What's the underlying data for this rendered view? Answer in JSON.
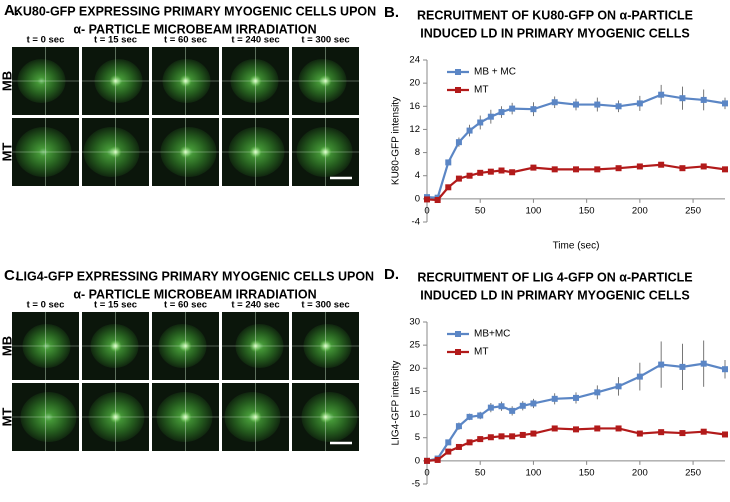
{
  "panels": [
    {
      "letter": "A.",
      "title": [
        "KU80-GFP EXPRESSING PRIMARY MYOGENIC CELLS UPON",
        "α- PARTICLE MICROBEAM IRRADIATION"
      ],
      "times": [
        "t = 0 sec",
        "t = 15 sec",
        "t = 60 sec",
        "t = 240 sec",
        "t = 300 sec"
      ],
      "rows": [
        "MB",
        "MT"
      ]
    },
    {
      "letter": "C.",
      "title": [
        "LIG4-GFP EXPRESSING PRIMARY MYOGENIC CELLS UPON",
        "α- PARTICLE MICROBEAM IRRADIATION"
      ],
      "times": [
        "t = 0 sec",
        "t = 15 sec",
        "t = 60 sec",
        "t = 240 sec",
        "t = 300 sec"
      ],
      "rows": [
        "MB",
        "MT"
      ]
    }
  ],
  "chart_data": [
    {
      "type": "line",
      "letter": "B.",
      "title": [
        "RECRUITMENT OF KU80-GFP ON α-PARTICLE",
        "INDUCED LD IN PRIMARY MYOGENIC CELLS"
      ],
      "x_label": "Time (sec)",
      "y_label": "KU80-GFP intensity",
      "legend": "upper left",
      "x": [
        0,
        10,
        20,
        30,
        40,
        50,
        60,
        70,
        80,
        100,
        120,
        140,
        160,
        180,
        200,
        220,
        240,
        260,
        280
      ],
      "series": [
        {
          "name": "MB + MC",
          "color": "#5b86c5",
          "values": [
            0.3,
            0.2,
            6.3,
            9.8,
            11.8,
            13.2,
            14.2,
            15,
            15.6,
            15.5,
            16.7,
            16.3,
            16.3,
            16,
            16.5,
            18,
            17.4,
            17.1,
            16.5
          ],
          "errors": [
            0.3,
            0.3,
            0.5,
            0.8,
            1,
            1.2,
            1.2,
            1,
            1,
            1.2,
            1,
            1,
            1.2,
            1,
            1.3,
            1.7,
            2,
            1.8,
            1
          ]
        },
        {
          "name": "MT",
          "color": "#b21a1a",
          "values": [
            -0.1,
            -0.2,
            2,
            3.5,
            4,
            4.5,
            4.7,
            4.9,
            4.6,
            5.4,
            5.1,
            5.1,
            5.1,
            5.3,
            5.6,
            5.9,
            5.3,
            5.6,
            5.1
          ]
        }
      ],
      "xlim": [
        0,
        280
      ],
      "xticks": [
        0,
        50,
        100,
        150,
        200,
        250
      ],
      "ylim": [
        -4,
        24
      ],
      "yticks": [
        -4,
        0,
        4,
        8,
        12,
        16,
        20,
        24
      ]
    },
    {
      "type": "line",
      "letter": "D.",
      "title": [
        "RECRUITMENT OF LIG 4-GFP ON α-PARTICLE",
        "INDUCED LD IN PRIMARY MYOGENIC CELLS"
      ],
      "x_label": "Time (sec)",
      "y_label": "LIG4-GFP intensity",
      "legend": "upper left",
      "x": [
        0,
        10,
        20,
        30,
        40,
        50,
        60,
        70,
        80,
        90,
        100,
        120,
        140,
        160,
        180,
        200,
        220,
        240,
        260,
        280
      ],
      "series": [
        {
          "name": "MB+MC",
          "color": "#5b86c5",
          "values": [
            0,
            0.5,
            4,
            7.5,
            9.5,
            9.8,
            11.5,
            11.8,
            10.8,
            11.9,
            12.4,
            13.4,
            13.6,
            14.8,
            16.1,
            18.2,
            20.8,
            20.3,
            21,
            19.8
          ],
          "errors": [
            0.3,
            0.3,
            0.5,
            0.8,
            0.7,
            0.8,
            1,
            1,
            1,
            1,
            1,
            1.2,
            1.2,
            1.5,
            2,
            3,
            5,
            5,
            5,
            2
          ]
        },
        {
          "name": "MT",
          "color": "#b21a1a",
          "values": [
            0,
            0.2,
            2,
            3,
            4,
            4.7,
            5.1,
            5.3,
            5.3,
            5.6,
            5.9,
            7,
            6.8,
            7,
            7,
            5.9,
            6.2,
            6,
            6.3,
            5.7
          ]
        }
      ],
      "xlim": [
        0,
        280
      ],
      "xticks": [
        0,
        50,
        100,
        150,
        200,
        250
      ],
      "ylim": [
        -5,
        30
      ],
      "yticks": [
        -5,
        0,
        5,
        10,
        15,
        20,
        25,
        30
      ]
    }
  ]
}
